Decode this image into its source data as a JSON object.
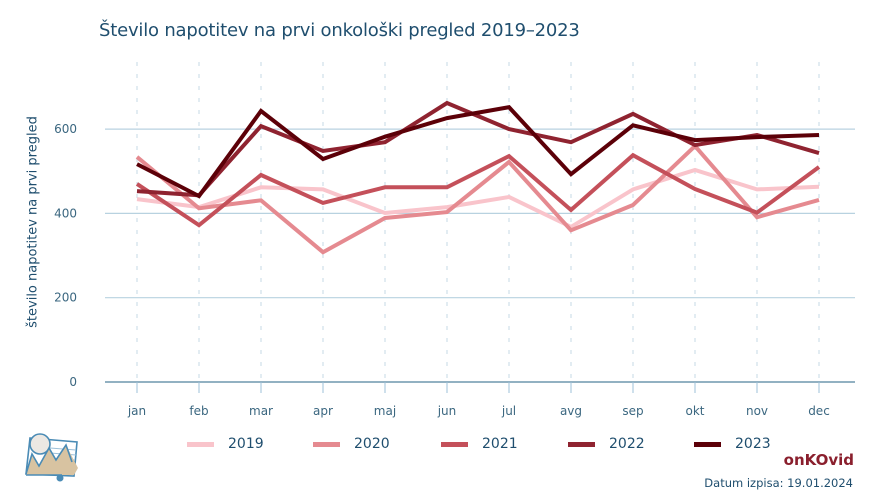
{
  "chart_data": {
    "type": "line",
    "title": "Število napotitev na prvi onkološki pregled 2019–2023",
    "xlabel": "",
    "ylabel": "število napotitev na prvi pregled",
    "categories": [
      "jan",
      "feb",
      "mar",
      "apr",
      "maj",
      "jun",
      "jul",
      "avg",
      "sep",
      "okt",
      "nov",
      "dec"
    ],
    "ylim": [
      0,
      700
    ],
    "yticks": [
      0,
      200,
      400,
      600
    ],
    "grid": "horizontal",
    "legend_position": "bottom",
    "series": [
      {
        "name": "2019",
        "color": "#f9c4cb",
        "values": [
          434,
          415,
          462,
          457,
          401,
          415,
          439,
          368,
          457,
          503,
          457,
          463
        ]
      },
      {
        "name": "2020",
        "color": "#e58a90",
        "values": [
          534,
          412,
          431,
          308,
          389,
          403,
          522,
          360,
          420,
          560,
          391,
          432
        ]
      },
      {
        "name": "2021",
        "color": "#c4505a",
        "values": [
          470,
          372,
          491,
          425,
          462,
          462,
          536,
          408,
          538,
          458,
          402,
          510
        ]
      },
      {
        "name": "2022",
        "color": "#8f2330",
        "values": [
          453,
          443,
          607,
          548,
          569,
          662,
          600,
          569,
          636,
          562,
          586,
          543
        ]
      },
      {
        "name": "2023",
        "color": "#5c0008",
        "values": [
          517,
          441,
          643,
          529,
          582,
          626,
          652,
          493,
          609,
          574,
          581,
          586
        ]
      }
    ]
  },
  "footer": {
    "brand": "onKOvid",
    "date_label": "Datum izpisa: 19.01.2024"
  },
  "logo": {
    "icon": "chart-landscape-icon"
  }
}
